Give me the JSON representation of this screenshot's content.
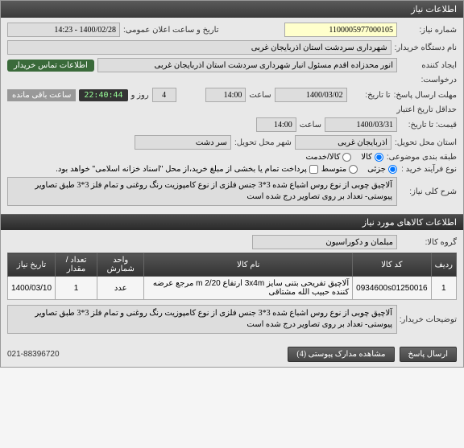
{
  "window": {
    "title": "اطلاعات نیاز"
  },
  "header": {
    "need_no_label": "شماره نیاز:",
    "need_no": "1100005977000105",
    "announce_label": "تاریخ و ساعت اعلان عمومی:",
    "announce": "1400/02/28 - 14:23",
    "buyer_label": "نام دستگاه خریدار:",
    "buyer": "شهرداری سردشت استان آذربایجان غربی",
    "creator_label": "ایجاد کننده",
    "creator": "انور محدزاده اقدم مسئول انبار شهرداری سردشت استان آذربایجان غربی",
    "contact_badge": "اطلاعات تماس خریدار",
    "request_label": "درخواست:",
    "deadline_label": "مهلت ارسال پاسخ:",
    "to_date_label": "تا تاریخ:",
    "date1": "1400/03/02",
    "time_label": "ساعت",
    "time1": "14:00",
    "days_val": "4",
    "days_label": "روز و",
    "countdown": "22:40:44",
    "remain": "ساعت باقی مانده",
    "min_valid_label": "حداقل تاریخ اعتبار",
    "to_date2_label": "قیمت: تا تاریخ:",
    "date2": "1400/03/31",
    "time2": "14:00",
    "delivery_prov_label": "استان محل تحویل:",
    "delivery_prov": "آذربایجان غربی",
    "delivery_city_label": "شهر محل تحویل:",
    "delivery_city": "سر دشت",
    "budget_label": "طبقه بندی موضوعی:",
    "budget_opts": {
      "kala": "کالا",
      "service": "کالا/خدمت"
    },
    "process_label": "نوع فرآیند خرید :",
    "process_opts": {
      "low": "جزئی",
      "mid": "متوسط"
    },
    "partial_pay": "پرداخت تمام یا بخشی از مبلغ خرید،از محل \"اسناد خزانه اسلامی\" خواهد بود.",
    "general_label": "شرح کلی نیاز:",
    "general_desc": "آلاچیق چوبی از نوع روس اشباع شده 3*3 جنس فلزی از نوع کامپوزیت رنگ روغنی و تمام فلز 3*3 طبق تصاویر پیوستی- تعداد بر روی تصاویر درج شده است"
  },
  "section2": {
    "title": "اطلاعات کالاهای مورد نیاز"
  },
  "goods": {
    "group_label": "گروه کالا:",
    "group": "مبلمان و دکوراسیون"
  },
  "table": {
    "cols": [
      "ردیف",
      "کد کالا",
      "نام کالا",
      "واحد شمارش",
      "تعداد / مقدار",
      "تاریخ نیاز"
    ],
    "rows": [
      [
        "1",
        "0934600s01250016",
        "آلاچیق تفریحی بتنی سایز 3x4m ارتفاع 2/20 m مرجع عرضه کننده حبیب الله مشتاقی",
        "عدد",
        "1",
        "1400/03/10"
      ]
    ]
  },
  "buyer_desc": {
    "label": "توضیحات خریدار:",
    "text": "آلاچیق چوبی از نوع روس اشباع شده 3*3 جنس فلزی از نوع کامپوزیت رنگ روغنی و تمام فلز 3*3 طبق تصاویر پیوستی- تعداد بر روی تصاویر درج شده است"
  },
  "footer": {
    "view_attach": "مشاهده مدارک پیوستی (4)",
    "reply": "ارسال پاسخ",
    "phone": "021-88396720"
  }
}
